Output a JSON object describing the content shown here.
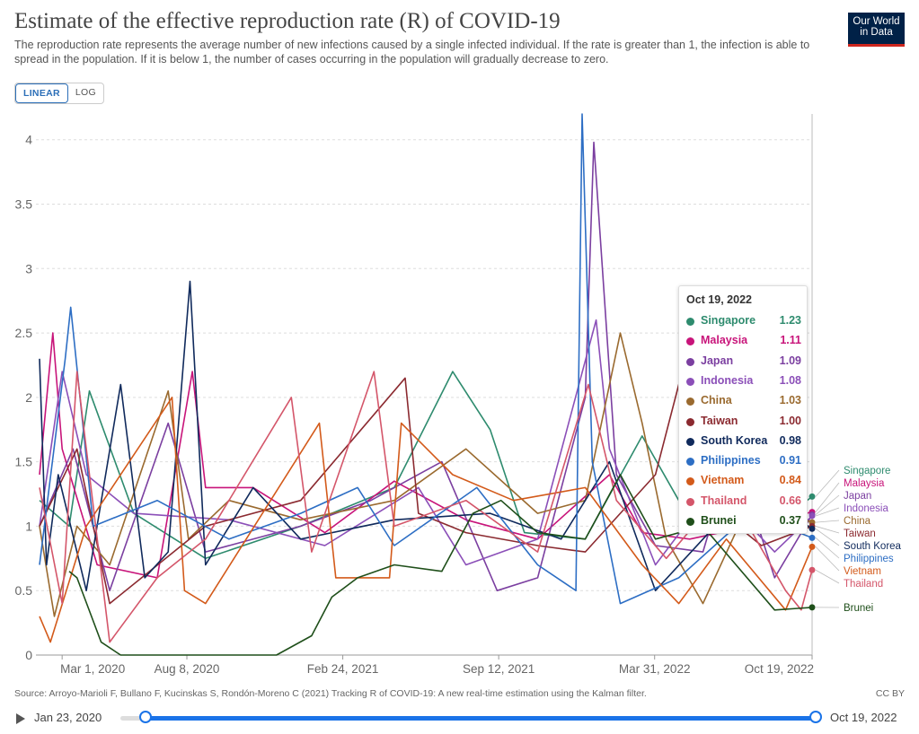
{
  "header": {
    "title": "Estimate of the effective reproduction rate (R) of COVID-19",
    "subtitle": "The reproduction rate represents the average number of new infections caused by a single infected individual. If the rate is greater than 1, the infection is able to spread in the population. If it is below 1, the number of cases occurring in the population will gradually decrease to zero.",
    "logo_line1": "Our World",
    "logo_line2": "in Data"
  },
  "scale_toggle": {
    "linear": "LINEAR",
    "log": "LOG",
    "selected": "LINEAR"
  },
  "chart_data": {
    "type": "line",
    "title": "Estimate of the effective reproduction rate (R) of COVID-19",
    "xlabel": "",
    "ylabel": "",
    "ylim": [
      0,
      4.2
    ],
    "y_ticks": [
      0,
      0.5,
      1,
      1.5,
      2,
      2.5,
      3,
      3.5,
      4
    ],
    "y_tick_labels": [
      "0",
      "0.5",
      "1",
      "1.5",
      "2",
      "2.5",
      "3",
      "3.5",
      "4"
    ],
    "x_range": [
      "2020-02-01",
      "2022-10-19"
    ],
    "x_ticks": [
      "2020-03-01",
      "2020-08-08",
      "2021-02-24",
      "2021-09-12",
      "2022-03-31",
      "2022-10-19"
    ],
    "x_tick_labels": [
      "Mar 1, 2020",
      "Aug 8, 2020",
      "Feb 24, 2021",
      "Sep 12, 2021",
      "Mar 31, 2022",
      "Oct 19, 2022"
    ],
    "grid": "horizontal dashed",
    "legend": "labels at right end of lines",
    "series": [
      {
        "name": "Singapore",
        "color": "#2e8b6e",
        "x": [
          "2020-02-01",
          "2020-03-10",
          "2020-04-05",
          "2020-06-01",
          "2020-09-01",
          "2021-01-01",
          "2021-05-01",
          "2021-07-15",
          "2021-09-01",
          "2021-10-15",
          "2022-01-01",
          "2022-03-15",
          "2022-05-01",
          "2022-07-01",
          "2022-09-01",
          "2022-10-19"
        ],
        "y": [
          1.2,
          1.0,
          2.05,
          1.1,
          0.75,
          1.0,
          1.3,
          2.2,
          1.75,
          0.95,
          0.9,
          1.7,
          1.2,
          1.1,
          1.0,
          1.23
        ]
      },
      {
        "name": "Malaysia",
        "color": "#c8147a",
        "x": [
          "2020-02-01",
          "2020-02-18",
          "2020-03-01",
          "2020-04-15",
          "2020-07-01",
          "2020-08-15",
          "2020-09-01",
          "2020-11-01",
          "2021-02-01",
          "2021-05-01",
          "2021-08-01",
          "2021-11-01",
          "2022-02-01",
          "2022-03-15",
          "2022-05-15",
          "2022-08-01",
          "2022-10-19"
        ],
        "y": [
          1.4,
          2.5,
          1.6,
          0.7,
          0.6,
          2.2,
          1.3,
          1.3,
          0.95,
          1.35,
          1.05,
          0.9,
          1.4,
          0.95,
          0.9,
          1.0,
          1.11
        ]
      },
      {
        "name": "Japan",
        "color": "#7b3fa0",
        "x": [
          "2020-02-01",
          "2020-03-15",
          "2020-05-01",
          "2020-07-15",
          "2020-09-01",
          "2021-01-01",
          "2021-04-01",
          "2021-07-01",
          "2021-09-10",
          "2021-11-01",
          "2022-01-01",
          "2022-01-12",
          "2022-02-10",
          "2022-04-01",
          "2022-06-01",
          "2022-07-10",
          "2022-09-01",
          "2022-10-19"
        ],
        "y": [
          1.0,
          1.6,
          0.5,
          1.8,
          0.8,
          1.0,
          1.2,
          1.5,
          0.5,
          0.6,
          2.0,
          3.98,
          1.4,
          0.85,
          0.8,
          1.6,
          0.6,
          1.09
        ]
      },
      {
        "name": "Indonesia",
        "color": "#8b4fb8",
        "x": [
          "2020-02-01",
          "2020-03-01",
          "2020-04-01",
          "2020-06-01",
          "2020-10-01",
          "2021-02-01",
          "2021-06-01",
          "2021-08-01",
          "2021-11-01",
          "2022-01-15",
          "2022-02-01",
          "2022-04-01",
          "2022-06-15",
          "2022-09-01",
          "2022-10-19"
        ],
        "y": [
          1.0,
          2.2,
          1.4,
          1.1,
          1.05,
          0.85,
          1.3,
          0.7,
          0.9,
          2.6,
          1.6,
          0.7,
          1.3,
          0.8,
          1.08
        ]
      },
      {
        "name": "China",
        "color": "#9a6a2f",
        "x": [
          "2020-02-01",
          "2020-02-20",
          "2020-03-20",
          "2020-05-01",
          "2020-07-15",
          "2020-08-10",
          "2020-10-01",
          "2021-01-01",
          "2021-05-01",
          "2021-08-01",
          "2021-11-01",
          "2022-01-01",
          "2022-02-15",
          "2022-03-15",
          "2022-04-15",
          "2022-06-01",
          "2022-08-01",
          "2022-10-19"
        ],
        "y": [
          1.0,
          0.3,
          1.0,
          0.7,
          2.05,
          0.9,
          1.2,
          1.05,
          1.2,
          1.6,
          1.1,
          1.2,
          2.5,
          1.8,
          0.9,
          0.4,
          1.2,
          1.03
        ]
      },
      {
        "name": "Taiwan",
        "color": "#8b2a30",
        "x": [
          "2020-02-01",
          "2020-03-20",
          "2020-05-01",
          "2020-09-01",
          "2021-01-01",
          "2021-05-15",
          "2021-06-01",
          "2021-08-01",
          "2021-11-01",
          "2022-01-01",
          "2022-04-01",
          "2022-05-01",
          "2022-06-15",
          "2022-08-15",
          "2022-10-19"
        ],
        "y": [
          1.0,
          1.6,
          0.4,
          1.0,
          1.2,
          2.15,
          1.1,
          0.95,
          0.85,
          0.8,
          1.4,
          2.1,
          1.15,
          0.85,
          1.0
        ]
      },
      {
        "name": "South Korea",
        "color": "#102a5c",
        "x": [
          "2020-02-01",
          "2020-02-10",
          "2020-02-25",
          "2020-04-01",
          "2020-05-15",
          "2020-06-15",
          "2020-07-15",
          "2020-08-12",
          "2020-09-01",
          "2020-11-01",
          "2021-01-01",
          "2021-05-01",
          "2021-09-01",
          "2021-12-01",
          "2022-02-01",
          "2022-04-01",
          "2022-06-01",
          "2022-08-01",
          "2022-10-19"
        ],
        "y": [
          2.3,
          0.7,
          1.4,
          0.5,
          2.1,
          0.6,
          0.8,
          2.9,
          0.7,
          1.3,
          0.9,
          1.05,
          1.1,
          0.9,
          1.5,
          0.5,
          0.9,
          1.3,
          0.98
        ]
      },
      {
        "name": "Philippines",
        "color": "#2d6ec4",
        "x": [
          "2020-02-01",
          "2020-03-05",
          "2020-03-12",
          "2020-04-10",
          "2020-07-01",
          "2020-10-01",
          "2021-01-01",
          "2021-03-15",
          "2021-05-01",
          "2021-08-15",
          "2021-11-01",
          "2021-12-20",
          "2021-12-28",
          "2022-01-10",
          "2022-02-15",
          "2022-05-01",
          "2022-08-01",
          "2022-10-19"
        ],
        "y": [
          0.7,
          2.3,
          2.7,
          1.0,
          1.2,
          0.9,
          1.1,
          1.3,
          0.85,
          1.3,
          0.7,
          0.5,
          4.2,
          1.5,
          0.4,
          0.6,
          1.1,
          0.91
        ]
      },
      {
        "name": "Vietnam",
        "color": "#d35a1a",
        "x": [
          "2020-02-01",
          "2020-02-15",
          "2020-04-01",
          "2020-07-20",
          "2020-08-05",
          "2020-09-01",
          "2021-01-25",
          "2021-02-15",
          "2021-04-25",
          "2021-05-10",
          "2021-07-15",
          "2021-10-01",
          "2022-01-01",
          "2022-03-15",
          "2022-05-01",
          "2022-07-01",
          "2022-09-15",
          "2022-10-19"
        ],
        "y": [
          0.3,
          0.1,
          1.0,
          2.0,
          0.5,
          0.4,
          1.8,
          0.6,
          0.6,
          1.8,
          1.4,
          1.2,
          1.3,
          0.7,
          0.4,
          0.9,
          0.35,
          0.84
        ]
      },
      {
        "name": "Thailand",
        "color": "#d4566a",
        "x": [
          "2020-02-01",
          "2020-03-01",
          "2020-03-20",
          "2020-05-01",
          "2020-07-01",
          "2020-09-01",
          "2020-12-20",
          "2021-01-15",
          "2021-04-05",
          "2021-05-01",
          "2021-08-01",
          "2021-11-01",
          "2022-01-05",
          "2022-02-10",
          "2022-04-15",
          "2022-07-01",
          "2022-09-15",
          "2022-10-05",
          "2022-10-19"
        ],
        "y": [
          1.3,
          0.4,
          2.2,
          0.1,
          0.6,
          0.9,
          2.0,
          0.8,
          2.2,
          1.0,
          1.2,
          0.8,
          2.1,
          1.2,
          0.75,
          1.3,
          0.5,
          0.35,
          0.66
        ]
      },
      {
        "name": "Brunei",
        "color": "#1f4f1a",
        "x": [
          "2020-03-10",
          "2020-03-20",
          "2020-04-20",
          "2020-05-15",
          "2020-12-01",
          "2021-01-15",
          "2021-02-10",
          "2021-03-15",
          "2021-05-01",
          "2021-07-01",
          "2021-08-10",
          "2021-09-15",
          "2021-11-01",
          "2022-01-01",
          "2022-02-15",
          "2022-04-01",
          "2022-06-01",
          "2022-09-01",
          "2022-10-19"
        ],
        "y": [
          0.65,
          0.6,
          0.1,
          0.0,
          0.0,
          0.15,
          0.45,
          0.6,
          0.7,
          0.65,
          1.1,
          1.2,
          0.95,
          0.9,
          1.4,
          0.9,
          1.0,
          0.35,
          0.37
        ]
      }
    ]
  },
  "end_labels": [
    "Singapore",
    "Malaysia",
    "Japan",
    "Indonesia",
    "China",
    "Taiwan",
    "South Korea",
    "Philippines",
    "Vietnam",
    "Thailand",
    "Brunei"
  ],
  "tooltip": {
    "date": "Oct 19, 2022",
    "rows": [
      {
        "name": "Singapore",
        "value": "1.23",
        "color": "#2e8b6e"
      },
      {
        "name": "Malaysia",
        "value": "1.11",
        "color": "#c8147a"
      },
      {
        "name": "Japan",
        "value": "1.09",
        "color": "#7b3fa0"
      },
      {
        "name": "Indonesia",
        "value": "1.08",
        "color": "#8b4fb8"
      },
      {
        "name": "China",
        "value": "1.03",
        "color": "#9a6a2f"
      },
      {
        "name": "Taiwan",
        "value": "1.00",
        "color": "#8b2a30"
      },
      {
        "name": "South Korea",
        "value": "0.98",
        "color": "#102a5c"
      },
      {
        "name": "Philippines",
        "value": "0.91",
        "color": "#2d6ec4"
      },
      {
        "name": "Vietnam",
        "value": "0.84",
        "color": "#d35a1a"
      },
      {
        "name": "Thailand",
        "value": "0.66",
        "color": "#d4566a"
      },
      {
        "name": "Brunei",
        "value": "0.37",
        "color": "#1f4f1a"
      }
    ]
  },
  "footer": {
    "source": "Source: Arroyo-Marioli F, Bullano F, Kucinskas S, Rondón-Moreno C (2021) Tracking R of COVID-19: A new real-time estimation using the Kalman filter.",
    "license": "CC BY"
  },
  "timeline": {
    "start": "Jan 23, 2020",
    "end": "Oct 19, 2022"
  }
}
